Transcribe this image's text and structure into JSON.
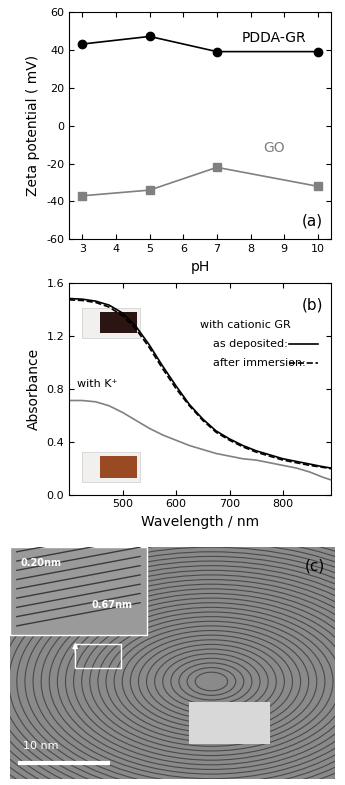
{
  "chart_data": [
    {
      "type": "line",
      "x_label": "pH",
      "y_label": "Zeta potential ( mV)",
      "x": [
        3,
        5,
        7,
        10
      ],
      "xlim": [
        2.6,
        10.4
      ],
      "xticks": [
        3,
        4,
        5,
        6,
        7,
        8,
        9,
        10
      ],
      "ylim": [
        -60,
        60
      ],
      "yticks": [
        -60,
        -40,
        -20,
        0,
        20,
        40,
        60
      ],
      "annotations": [
        "(a)"
      ],
      "series": [
        {
          "name": "PDDA-GR",
          "color": "#000000",
          "marker": "circle",
          "line_style": "solid",
          "values": [
            43,
            47,
            39,
            39
          ]
        },
        {
          "name": "GO",
          "color": "#808080",
          "marker": "square",
          "line_style": "solid",
          "values": [
            -37,
            -34,
            -22,
            -32
          ]
        }
      ]
    },
    {
      "type": "line",
      "x_label": "Wavelength / nm",
      "y_label": "Absorbance",
      "x": [
        400,
        425,
        450,
        475,
        500,
        525,
        550,
        575,
        600,
        625,
        650,
        675,
        700,
        725,
        750,
        775,
        800,
        825,
        850,
        875,
        890
      ],
      "xlim": [
        400,
        890
      ],
      "xticks": [
        500,
        600,
        700,
        800
      ],
      "ylim": [
        0,
        1.6
      ],
      "yticks": [
        {
          "value": 0,
          "label": "0.0"
        },
        {
          "value": 0.4,
          "label": "0.4"
        },
        {
          "value": 0.8,
          "label": "0.8"
        },
        {
          "value": 1.2,
          "label": "1.2"
        },
        {
          "value": 1.6,
          "label": "1.6"
        }
      ],
      "annotations": [
        "with cationic GR",
        "(b)"
      ],
      "series": [
        {
          "name": "as deposited:",
          "color": "#000000",
          "line_style": "solid",
          "values": [
            1.48,
            1.475,
            1.46,
            1.43,
            1.37,
            1.27,
            1.13,
            0.97,
            0.82,
            0.68,
            0.57,
            0.48,
            0.42,
            0.37,
            0.33,
            0.3,
            0.27,
            0.25,
            0.23,
            0.21,
            0.2
          ]
        },
        {
          "name": "after immersion:",
          "color": "#000000",
          "line_style": "dashed",
          "values": [
            1.47,
            1.465,
            1.45,
            1.415,
            1.35,
            1.25,
            1.11,
            0.95,
            0.8,
            0.67,
            0.56,
            0.47,
            0.41,
            0.36,
            0.32,
            0.29,
            0.26,
            0.24,
            0.22,
            0.205,
            0.195
          ]
        },
        {
          "name": "with K⁺",
          "color": "#808080",
          "line_style": "solid",
          "values": [
            0.71,
            0.71,
            0.7,
            0.67,
            0.62,
            0.56,
            0.5,
            0.45,
            0.41,
            0.37,
            0.34,
            0.31,
            0.29,
            0.27,
            0.26,
            0.24,
            0.22,
            0.2,
            0.17,
            0.13,
            0.11
          ]
        }
      ]
    },
    {
      "type": "image",
      "annotations": [
        "0.20nm",
        "0.67nm",
        "10 nm",
        "(c)"
      ]
    }
  ]
}
